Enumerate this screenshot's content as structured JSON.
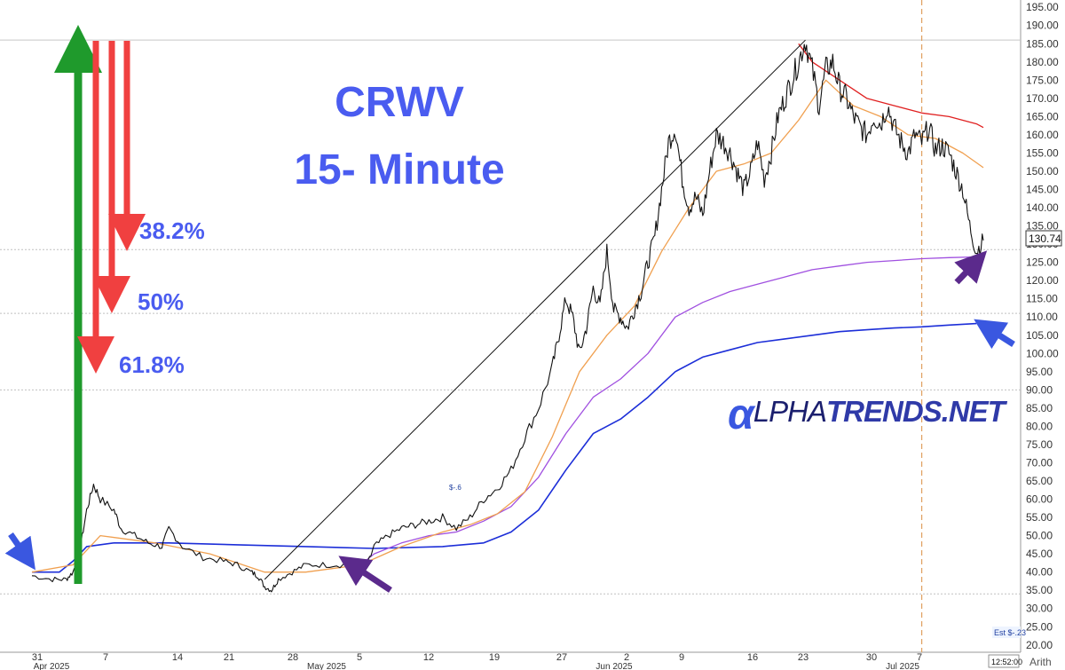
{
  "chart_data": {
    "type": "line",
    "ticker": "CRWV",
    "title_line1": "CRWV",
    "title_line2": "15- Minute",
    "ylim": [
      18,
      197
    ],
    "y_ticks": [
      20,
      25,
      30,
      35,
      40,
      45,
      50,
      55,
      60,
      65,
      70,
      75,
      80,
      85,
      90,
      95,
      100,
      105,
      110,
      115,
      120,
      125,
      130,
      135,
      140,
      145,
      150,
      155,
      160,
      165,
      170,
      175,
      180,
      185,
      190,
      195
    ],
    "x_ticks": [
      "31",
      "7",
      "14",
      "21",
      "28",
      "5",
      "12",
      "19",
      "27",
      "2",
      "9",
      "16",
      "23",
      "30",
      "7"
    ],
    "month_labels": [
      "Apr 2025",
      "May 2025",
      "Jun 2025",
      "Jul 2025"
    ],
    "last_price": "130.74",
    "scale_label": "Arith",
    "time_label": "12:52:00",
    "est_label": "Est $-.23",
    "annotation_marker": "$-.6",
    "logo": {
      "a": "α",
      "part1": "LPHA",
      "part2": "TRENDS.NET"
    },
    "fib_levels": [
      "38.2%",
      "50%",
      "61.8%"
    ],
    "series": [
      {
        "role": "price",
        "color": "#111111",
        "points": [
          [
            0,
            39
          ],
          [
            3,
            38
          ],
          [
            5,
            38
          ],
          [
            6,
            40
          ],
          [
            7,
            46
          ],
          [
            8,
            57
          ],
          [
            9,
            64
          ],
          [
            10,
            60
          ],
          [
            12,
            57
          ],
          [
            13,
            52
          ],
          [
            15,
            50
          ],
          [
            17,
            48
          ],
          [
            19,
            47
          ],
          [
            20,
            52
          ],
          [
            22,
            47
          ],
          [
            25,
            44
          ],
          [
            28,
            43
          ],
          [
            30,
            42
          ],
          [
            32,
            40
          ],
          [
            33,
            39
          ],
          [
            34,
            36
          ],
          [
            35,
            35
          ],
          [
            36,
            38
          ],
          [
            38,
            40
          ],
          [
            40,
            42
          ],
          [
            43,
            42
          ],
          [
            46,
            42
          ],
          [
            48,
            42
          ],
          [
            49,
            42
          ],
          [
            50,
            47
          ],
          [
            52,
            50
          ],
          [
            54,
            52
          ],
          [
            56,
            53
          ],
          [
            58,
            54
          ],
          [
            60,
            55
          ],
          [
            62,
            52
          ],
          [
            64,
            55
          ],
          [
            66,
            60
          ],
          [
            68,
            63
          ],
          [
            70,
            68
          ],
          [
            72,
            77
          ],
          [
            74,
            85
          ],
          [
            76,
            96
          ],
          [
            77,
            105
          ],
          [
            78,
            115
          ],
          [
            79,
            110
          ],
          [
            80,
            100
          ],
          [
            81,
            107
          ],
          [
            82,
            118
          ],
          [
            83,
            113
          ],
          [
            84,
            128
          ],
          [
            85,
            112
          ],
          [
            86,
            110
          ],
          [
            87,
            107
          ],
          [
            88,
            112
          ],
          [
            89,
            117
          ],
          [
            90,
            125
          ],
          [
            91,
            132
          ],
          [
            92,
            145
          ],
          [
            93,
            158
          ],
          [
            94,
            162
          ],
          [
            95,
            148
          ],
          [
            96,
            140
          ],
          [
            97,
            143
          ],
          [
            98,
            138
          ],
          [
            99,
            150
          ],
          [
            100,
            160
          ],
          [
            101,
            158
          ],
          [
            102,
            155
          ],
          [
            103,
            150
          ],
          [
            104,
            145
          ],
          [
            105,
            150
          ],
          [
            106,
            158
          ],
          [
            107,
            148
          ],
          [
            108,
            155
          ],
          [
            109,
            165
          ],
          [
            110,
            170
          ],
          [
            111,
            175
          ],
          [
            112,
            180
          ],
          [
            113,
            186
          ],
          [
            114,
            178
          ],
          [
            115,
            168
          ],
          [
            116,
            178
          ],
          [
            117,
            180
          ],
          [
            118,
            173
          ],
          [
            119,
            170
          ],
          [
            120,
            165
          ],
          [
            121,
            162
          ],
          [
            122,
            160
          ],
          [
            123,
            165
          ],
          [
            124,
            163
          ],
          [
            125,
            168
          ],
          [
            126,
            162
          ],
          [
            127,
            158
          ],
          [
            128,
            155
          ],
          [
            129,
            160
          ],
          [
            130,
            158
          ],
          [
            131,
            162
          ],
          [
            132,
            156
          ],
          [
            133,
            157
          ],
          [
            134,
            155
          ],
          [
            135,
            150
          ],
          [
            136,
            145
          ],
          [
            137,
            135
          ],
          [
            138,
            128
          ],
          [
            139,
            131
          ]
        ]
      },
      {
        "role": "ma_short",
        "color": "#f0a050",
        "points": [
          [
            0,
            40
          ],
          [
            6,
            42
          ],
          [
            10,
            50
          ],
          [
            18,
            48
          ],
          [
            26,
            45
          ],
          [
            34,
            40
          ],
          [
            40,
            40
          ],
          [
            48,
            42
          ],
          [
            54,
            47
          ],
          [
            60,
            51
          ],
          [
            64,
            53
          ],
          [
            68,
            56
          ],
          [
            72,
            62
          ],
          [
            76,
            77
          ],
          [
            80,
            95
          ],
          [
            84,
            105
          ],
          [
            88,
            113
          ],
          [
            92,
            128
          ],
          [
            96,
            140
          ],
          [
            100,
            150
          ],
          [
            104,
            152
          ],
          [
            108,
            155
          ],
          [
            112,
            164
          ],
          [
            116,
            175
          ],
          [
            120,
            168
          ],
          [
            124,
            165
          ],
          [
            128,
            160
          ],
          [
            132,
            159
          ],
          [
            136,
            155
          ],
          [
            139,
            151
          ]
        ]
      },
      {
        "role": "ma_red",
        "color": "#e02020",
        "points": [
          [
            112,
            185
          ],
          [
            114,
            180
          ],
          [
            118,
            175
          ],
          [
            122,
            170
          ],
          [
            126,
            168
          ],
          [
            130,
            166
          ],
          [
            134,
            165
          ],
          [
            138,
            163
          ],
          [
            139,
            162
          ]
        ]
      },
      {
        "role": "ma_purple",
        "color": "#a050e0",
        "points": [
          [
            46,
            41
          ],
          [
            48,
            42
          ],
          [
            50,
            45
          ],
          [
            54,
            48
          ],
          [
            58,
            50
          ],
          [
            62,
            51
          ],
          [
            66,
            54
          ],
          [
            70,
            58
          ],
          [
            74,
            66
          ],
          [
            78,
            78
          ],
          [
            82,
            88
          ],
          [
            86,
            93
          ],
          [
            90,
            100
          ],
          [
            94,
            110
          ],
          [
            98,
            114
          ],
          [
            102,
            117
          ],
          [
            106,
            119
          ],
          [
            110,
            121
          ],
          [
            114,
            123
          ],
          [
            118,
            124
          ],
          [
            122,
            125
          ],
          [
            126,
            125.5
          ],
          [
            130,
            126
          ],
          [
            134,
            126.3
          ],
          [
            138,
            126.5
          ]
        ]
      },
      {
        "role": "vwap_blue",
        "color": "#1c2ed8",
        "points": [
          [
            0,
            40
          ],
          [
            4,
            40
          ],
          [
            6,
            43
          ],
          [
            8,
            47
          ],
          [
            12,
            48
          ],
          [
            20,
            48
          ],
          [
            30,
            47.5
          ],
          [
            40,
            47
          ],
          [
            50,
            46.5
          ],
          [
            60,
            47
          ],
          [
            66,
            48
          ],
          [
            70,
            51
          ],
          [
            74,
            57
          ],
          [
            78,
            68
          ],
          [
            82,
            78
          ],
          [
            86,
            82
          ],
          [
            90,
            88
          ],
          [
            94,
            95
          ],
          [
            98,
            99
          ],
          [
            102,
            101
          ],
          [
            106,
            103
          ],
          [
            110,
            104
          ],
          [
            114,
            105
          ],
          [
            118,
            106
          ],
          [
            122,
            106.5
          ],
          [
            126,
            107
          ],
          [
            130,
            107.3
          ],
          [
            134,
            107.8
          ],
          [
            138,
            108.2
          ]
        ]
      },
      {
        "role": "trendline",
        "color": "#111111",
        "points": [
          [
            34,
            38
          ],
          [
            113,
            186
          ]
        ]
      }
    ],
    "horizontal_levels": [
      186,
      128.5,
      111,
      90,
      34
    ],
    "vertical_marker_x": 130
  }
}
